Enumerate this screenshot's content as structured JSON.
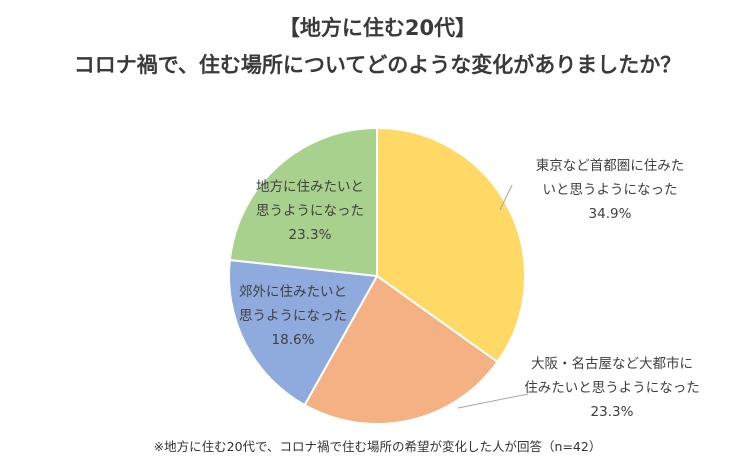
{
  "header": {
    "title": "【地方に住む20代】",
    "subtitle": "コロナ禍で、住む場所についてどのような変化がありましたか？"
  },
  "footnote": "※地方に住む20代で、コロナ禍で住む場所の希望が変化した人が回答（n=42）",
  "chart_data": {
    "type": "pie",
    "title": "【地方に住む20代】 コロナ禍で、住む場所についてどのような変化がありましたか？",
    "slices": [
      {
        "label": [
          "東京など首都圏に住みた",
          "いと思うようになった"
        ],
        "value": 34.9,
        "display": "34.9%",
        "color": "#FFD966"
      },
      {
        "label": [
          "大阪・名古屋など大都市に",
          "住みたいと思うようになった"
        ],
        "value": 23.3,
        "display": "23.3%",
        "color": "#F4B183"
      },
      {
        "label": [
          "郊外に住みたいと",
          "思うようになった"
        ],
        "value": 18.6,
        "display": "18.6%",
        "color": "#8FAADC"
      },
      {
        "label": [
          "地方に住みたいと",
          "思うようになった"
        ],
        "value": 23.3,
        "display": "23.3%",
        "color": "#A9D18E"
      }
    ],
    "start_angle": "12 o'clock",
    "direction": "clockwise",
    "legend": "none"
  }
}
